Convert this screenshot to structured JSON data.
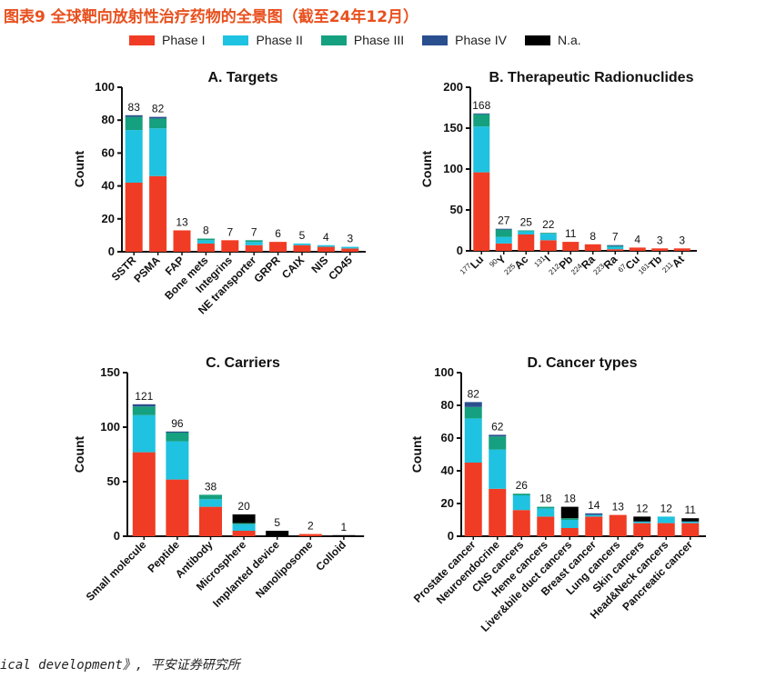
{
  "figure_title": "图表9 全球靶向放射性治疗药物的全景图（截至24年12月）",
  "source_text": "ical development》, 平安证券研究所",
  "colors": {
    "Phase I": "#f03c24",
    "Phase II": "#1fc2e0",
    "Phase III": "#15a07f",
    "Phase IV": "#2a4f8f",
    "N.a.": "#000000"
  },
  "legend": [
    "Phase I",
    "Phase II",
    "Phase III",
    "Phase IV",
    "N.a."
  ],
  "chart_data": [
    {
      "id": "A",
      "type": "bar",
      "stacked": true,
      "title": "A. Targets",
      "ylabel": "Count",
      "ylim": [
        0,
        100
      ],
      "yticks": [
        0,
        20,
        40,
        60,
        80,
        100
      ],
      "categories": [
        "SSTR",
        "PSMA",
        "FAP",
        "Bone mets",
        "Integrins",
        "NE transporter",
        "GRPR",
        "CAIX",
        "NIS",
        "CD45"
      ],
      "totals": [
        83,
        82,
        13,
        8,
        7,
        7,
        6,
        5,
        4,
        3
      ],
      "series": [
        {
          "name": "Phase I",
          "values": [
            42,
            46,
            13,
            5,
            7,
            4,
            6,
            4,
            3,
            2
          ]
        },
        {
          "name": "Phase II",
          "values": [
            32,
            29,
            0,
            2,
            0,
            2,
            0,
            1,
            1,
            1
          ]
        },
        {
          "name": "Phase III",
          "values": [
            8,
            6,
            0,
            1,
            0,
            1,
            0,
            0,
            0,
            0
          ]
        },
        {
          "name": "Phase IV",
          "values": [
            1,
            1,
            0,
            0,
            0,
            0,
            0,
            0,
            0,
            0
          ]
        },
        {
          "name": "N.a.",
          "values": [
            0,
            0,
            0,
            0,
            0,
            0,
            0,
            0,
            0,
            0
          ]
        }
      ]
    },
    {
      "id": "B",
      "type": "bar",
      "stacked": true,
      "title": "B. Therapeutic Radionuclides",
      "ylabel": "Count",
      "ylim": [
        0,
        200
      ],
      "yticks": [
        0,
        50,
        100,
        150,
        200
      ],
      "categories": [
        "Lu",
        "Y",
        "Ac",
        "I",
        "Pb",
        "Ra",
        "Ra",
        "Cu",
        "Tb",
        "At"
      ],
      "isotopes": [
        "177",
        "90",
        "225",
        "131",
        "212",
        "224",
        "223",
        "67",
        "161",
        "211"
      ],
      "totals": [
        168,
        27,
        25,
        22,
        11,
        8,
        7,
        4,
        3,
        3
      ],
      "series": [
        {
          "name": "Phase I",
          "values": [
            96,
            9,
            20,
            13,
            11,
            8,
            2,
            4,
            3,
            3
          ]
        },
        {
          "name": "Phase II",
          "values": [
            56,
            8,
            4,
            8,
            0,
            0,
            3,
            0,
            0,
            0
          ]
        },
        {
          "name": "Phase III",
          "values": [
            15,
            9,
            1,
            1,
            0,
            0,
            1,
            0,
            0,
            0
          ]
        },
        {
          "name": "Phase IV",
          "values": [
            1,
            1,
            0,
            0,
            0,
            0,
            1,
            0,
            0,
            0
          ]
        },
        {
          "name": "N.a.",
          "values": [
            0,
            0,
            0,
            0,
            0,
            0,
            0,
            0,
            0,
            0
          ]
        }
      ]
    },
    {
      "id": "C",
      "type": "bar",
      "stacked": true,
      "title": "C. Carriers",
      "ylabel": "Count",
      "ylim": [
        0,
        150
      ],
      "yticks": [
        0,
        50,
        100,
        150
      ],
      "categories": [
        "Small molecule",
        "Peptide",
        "Antibody",
        "Microsphere",
        "Implanted device",
        "Nanoliposome",
        "Colloid"
      ],
      "totals": [
        121,
        96,
        38,
        20,
        5,
        2,
        1
      ],
      "series": [
        {
          "name": "Phase I",
          "values": [
            77,
            52,
            27,
            5,
            0,
            2,
            0
          ]
        },
        {
          "name": "Phase II",
          "values": [
            34,
            35,
            7,
            6,
            0,
            0,
            0
          ]
        },
        {
          "name": "Phase III",
          "values": [
            8,
            8,
            4,
            1,
            0,
            0,
            0
          ]
        },
        {
          "name": "Phase IV",
          "values": [
            2,
            1,
            0,
            0,
            0,
            0,
            0
          ]
        },
        {
          "name": "N.a.",
          "values": [
            0,
            0,
            0,
            8,
            5,
            0,
            1
          ]
        }
      ]
    },
    {
      "id": "D",
      "type": "bar",
      "stacked": true,
      "title": "D. Cancer types",
      "ylabel": "Count",
      "ylim": [
        0,
        100
      ],
      "yticks": [
        0,
        20,
        40,
        60,
        80,
        100
      ],
      "categories": [
        "Prostate cancer",
        "Neuroendocrine",
        "CNS cancers",
        "Heme cancers",
        "Liver&bile duct cancers",
        "Breast cancer",
        "Lung cancers",
        "Skin cancers",
        "Head&Neck cancers",
        "Pancreatic cancer"
      ],
      "totals": [
        82,
        62,
        26,
        18,
        18,
        14,
        13,
        12,
        12,
        11
      ],
      "series": [
        {
          "name": "Phase I",
          "values": [
            45,
            29,
            16,
            12,
            5,
            12,
            13,
            8,
            8,
            8
          ]
        },
        {
          "name": "Phase II",
          "values": [
            27,
            24,
            9,
            5,
            5,
            1,
            0,
            1,
            4,
            1
          ]
        },
        {
          "name": "Phase III",
          "values": [
            7,
            8,
            1,
            1,
            1,
            0,
            0,
            0,
            0,
            0
          ]
        },
        {
          "name": "Phase IV",
          "values": [
            3,
            1,
            0,
            0,
            0,
            1,
            0,
            0,
            0,
            0
          ]
        },
        {
          "name": "N.a.",
          "values": [
            0,
            0,
            0,
            0,
            7,
            0,
            0,
            3,
            0,
            2
          ]
        }
      ]
    }
  ]
}
